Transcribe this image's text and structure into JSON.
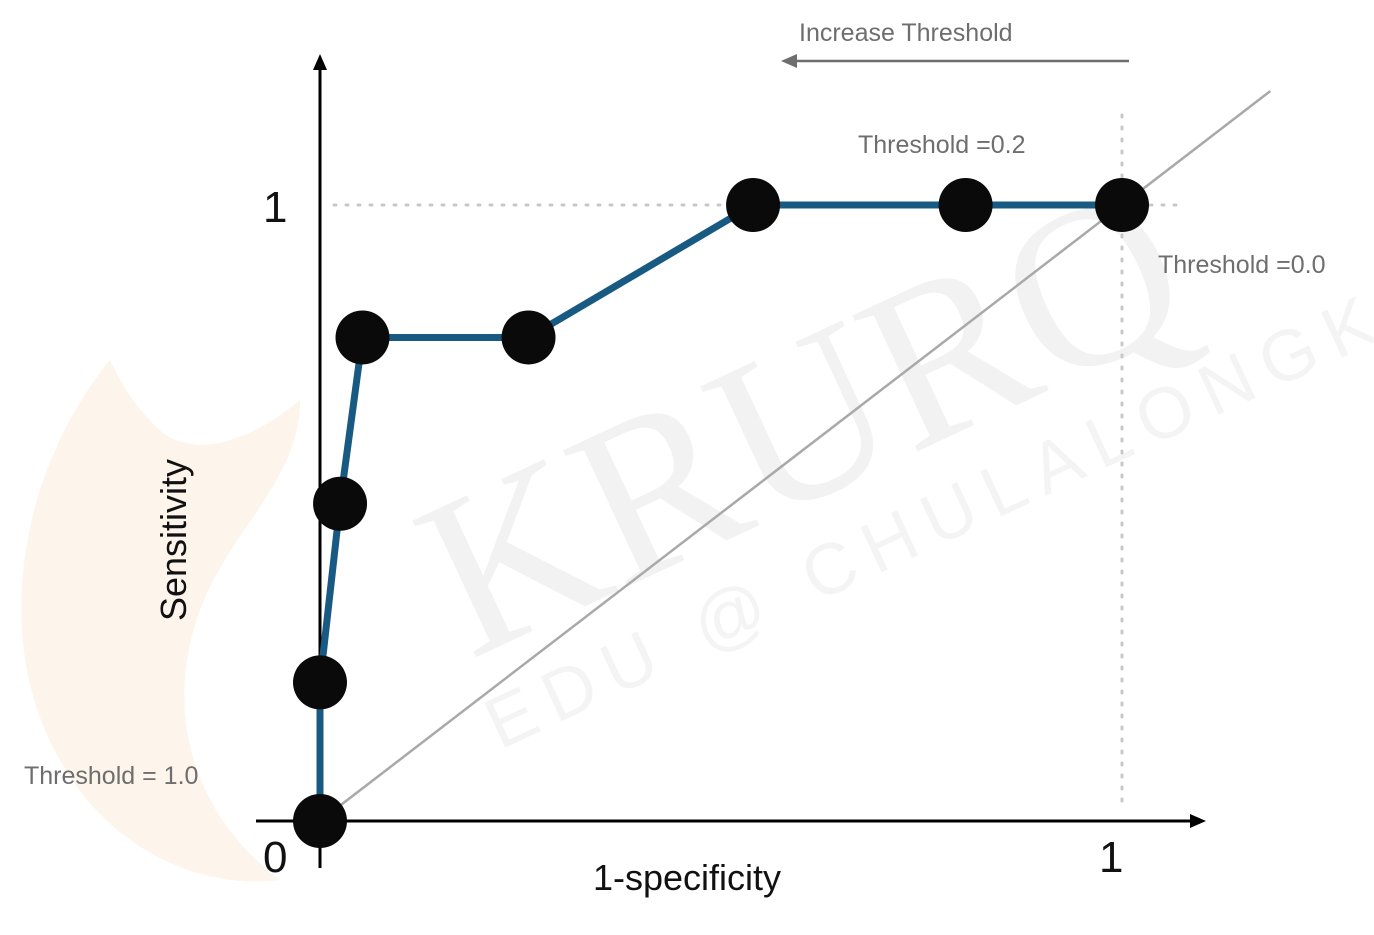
{
  "chart_data": {
    "type": "line",
    "title": "",
    "xlabel": "1-specificity",
    "ylabel": "Sensitivity",
    "xlim": [
      0,
      1
    ],
    "ylim": [
      0,
      1
    ],
    "x_ticks": [
      "0",
      "1"
    ],
    "y_ticks": [
      "1"
    ],
    "grid": false,
    "series": [
      {
        "points": [
          {
            "x": 0.0,
            "y": 0.0
          },
          {
            "x": 0.0,
            "y": 0.225
          },
          {
            "x": 0.025,
            "y": 0.515
          },
          {
            "x": 0.053,
            "y": 0.785
          },
          {
            "x": 0.26,
            "y": 0.785
          },
          {
            "x": 0.54,
            "y": 1.0
          },
          {
            "x": 0.805,
            "y": 1.0
          },
          {
            "x": 1.0,
            "y": 1.0
          }
        ]
      }
    ],
    "reference_line": {
      "from": [
        0,
        0
      ],
      "to": [
        1,
        1
      ]
    },
    "annotations": [
      {
        "text": "Threshold = 1.0",
        "x": 0.0,
        "y": 0.0
      },
      {
        "text": "Threshold =0.2",
        "x": 0.805,
        "y": 1.0
      },
      {
        "text": "Threshold =0.0",
        "x": 1.0,
        "y": 1.0
      },
      {
        "text": "Increase Threshold",
        "arrow": "left"
      }
    ]
  },
  "watermark": {
    "main": "KRURQ",
    "sub": "EDU @ CHULALONGKORN"
  },
  "colors": {
    "curve": "#195a83",
    "point": "#0a0a0a",
    "axis": "#000000",
    "diagonal": "#a9a9a9",
    "guide": "#c8c8c8",
    "annotation": "#6e6e6e"
  }
}
